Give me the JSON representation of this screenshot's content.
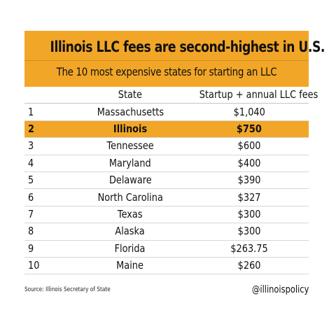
{
  "chart_data": {
    "type": "table",
    "title": "Illinois LLC fees are second-highest in U.S.",
    "subtitle": "The 10 most expensive states for starting an LLC",
    "columns": [
      "",
      "State",
      "Startup + annual LLC fees"
    ],
    "rows": [
      {
        "rank": "1",
        "state": "Massachusetts",
        "fee": "$1,040",
        "fee_value": 1040,
        "highlight": false
      },
      {
        "rank": "2",
        "state": "Illinois",
        "fee": "$750",
        "fee_value": 750,
        "highlight": true
      },
      {
        "rank": "3",
        "state": "Tennessee",
        "fee": "$600",
        "fee_value": 600,
        "highlight": false
      },
      {
        "rank": "4",
        "state": "Maryland",
        "fee": "$400",
        "fee_value": 400,
        "highlight": false
      },
      {
        "rank": "5",
        "state": "Delaware",
        "fee": "$390",
        "fee_value": 390,
        "highlight": false
      },
      {
        "rank": "6",
        "state": "North Carolina",
        "fee": "$327",
        "fee_value": 327,
        "highlight": false
      },
      {
        "rank": "7",
        "state": "Texas",
        "fee": "$300",
        "fee_value": 300,
        "highlight": false
      },
      {
        "rank": "8",
        "state": "Alaska",
        "fee": "$300",
        "fee_value": 300,
        "highlight": false
      },
      {
        "rank": "9",
        "state": "Florida",
        "fee": "$263.75",
        "fee_value": 263.75,
        "highlight": false
      },
      {
        "rank": "10",
        "state": "Maine",
        "fee": "$260",
        "fee_value": 260,
        "highlight": false
      }
    ],
    "source": "Source: Illinois Secretary of State",
    "handle": "@illinoispolicy"
  },
  "colors": {
    "accent": "#f2a627",
    "text": "#111111",
    "background": "#ffffff"
  }
}
